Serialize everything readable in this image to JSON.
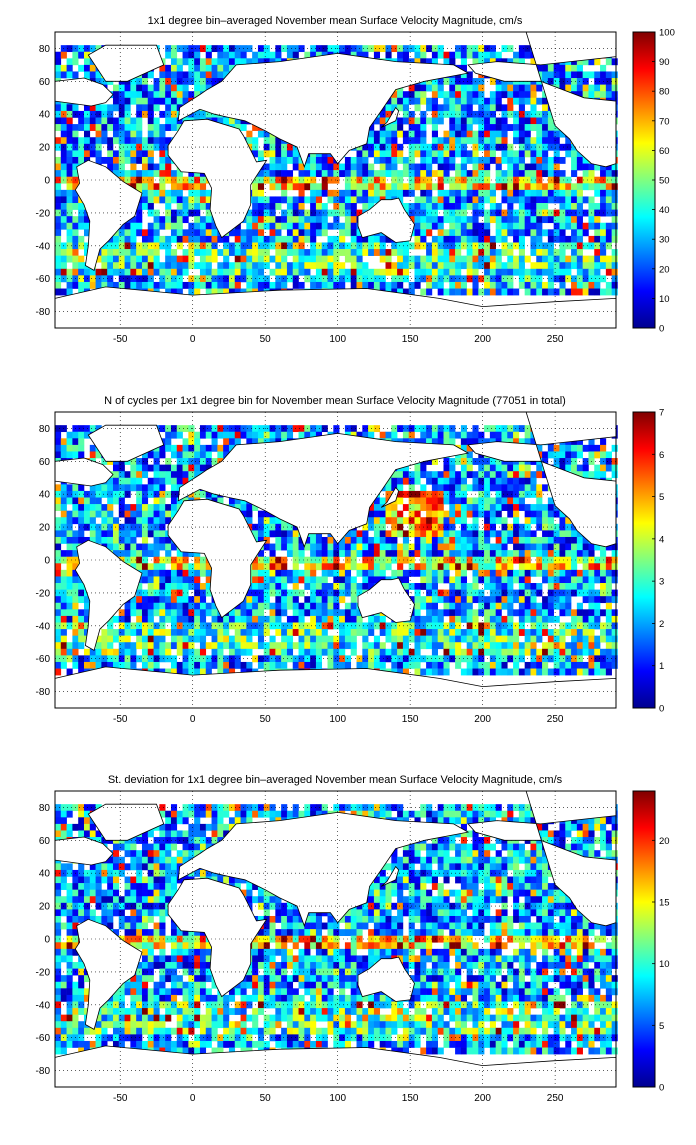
{
  "panels": [
    {
      "title": "1x1 degree bin–averaged November mean Surface Velocity Magnitude, cm/s",
      "colorbar_ticks": [
        0,
        10,
        20,
        30,
        40,
        50,
        60,
        70,
        80,
        90,
        100
      ],
      "cmax": 100
    },
    {
      "title": "N of cycles per 1x1 degree bin for November mean Surface Velocity Magnitude (77051 in total)",
      "colorbar_ticks": [
        0,
        1,
        2,
        3,
        4,
        5,
        6,
        7
      ],
      "cmax": 7
    },
    {
      "title": "St. deviation for 1x1 degree bin–averaged November mean Surface Velocity Magnitude, cm/s",
      "colorbar_ticks": [
        0,
        5,
        10,
        15,
        20
      ],
      "cmax": 24
    }
  ],
  "chart_data": [
    {
      "type": "heatmap",
      "title": "1x1 degree bin–averaged November mean Surface Velocity Magnitude, cm/s",
      "xlim": [
        -95,
        292
      ],
      "ylim": [
        -90,
        90
      ],
      "xticks": [
        -50,
        0,
        50,
        100,
        150,
        200,
        250
      ],
      "yticks": [
        -80,
        -60,
        -40,
        -20,
        0,
        20,
        40,
        60,
        80
      ],
      "clim": [
        0,
        100
      ],
      "colormap": "jet",
      "grid": true
    },
    {
      "type": "heatmap",
      "title": "N of cycles per 1x1 degree bin for November mean Surface Velocity Magnitude (77051 in total)",
      "xlim": [
        -95,
        292
      ],
      "ylim": [
        -90,
        90
      ],
      "xticks": [
        -50,
        0,
        50,
        100,
        150,
        200,
        250
      ],
      "yticks": [
        -80,
        -60,
        -40,
        -20,
        0,
        20,
        40,
        60,
        80
      ],
      "clim": [
        0,
        7
      ],
      "colormap": "jet",
      "grid": true
    },
    {
      "type": "heatmap",
      "title": "St. deviation for 1x1 degree bin–averaged November mean Surface Velocity Magnitude, cm/s",
      "xlim": [
        -95,
        292
      ],
      "ylim": [
        -90,
        90
      ],
      "xticks": [
        -50,
        0,
        50,
        100,
        150,
        200,
        250
      ],
      "yticks": [
        -80,
        -60,
        -40,
        -20,
        0,
        20,
        40,
        60,
        80
      ],
      "clim": [
        0,
        24
      ],
      "colormap": "jet",
      "grid": true
    }
  ]
}
